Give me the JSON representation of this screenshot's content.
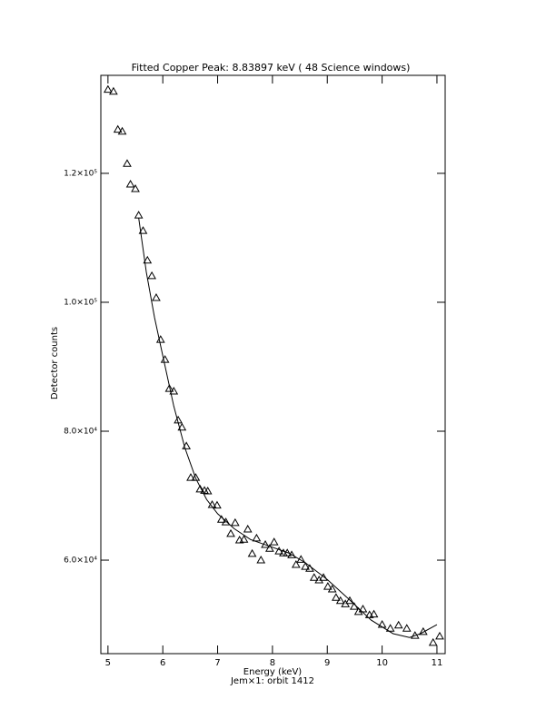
{
  "chart_data": {
    "type": "scatter",
    "title": "Fitted Copper Peak:      8.83897 keV (      48 Science windows)",
    "xlabel": "Energy (keV)",
    "caption": "Jem×1: orbit 1412",
    "ylabel": "Detector counts",
    "xlim": [
      4.87,
      11.15
    ],
    "ylim": [
      45500,
      135200
    ],
    "xticks": [
      5,
      6,
      7,
      8,
      9,
      10,
      11
    ],
    "yticks": [
      {
        "value": 60000,
        "label": "6.0×10⁴"
      },
      {
        "value": 80000,
        "label": "8.0×10⁴"
      },
      {
        "value": 100000,
        "label": "1.0×10⁵"
      },
      {
        "value": 120000,
        "label": "1.2×10⁵"
      }
    ],
    "color": "#000000",
    "series": [
      {
        "marker": "triangle",
        "x": [
          5.0,
          5.1,
          5.18,
          5.26,
          5.35,
          5.41,
          5.5,
          5.56,
          5.64,
          5.72,
          5.8,
          5.88,
          5.96,
          6.04,
          6.12,
          6.2,
          6.28,
          6.35,
          6.43,
          6.51,
          6.6,
          6.68,
          6.76,
          6.82,
          6.9,
          6.99,
          7.07,
          7.15,
          7.24,
          7.32,
          7.4,
          7.48,
          7.55,
          7.63,
          7.71,
          7.79,
          7.87,
          7.95,
          8.03,
          8.12,
          8.2,
          8.27,
          8.35,
          8.43,
          8.52,
          8.6,
          8.68,
          8.76,
          8.85,
          8.93,
          9.01,
          9.09,
          9.16,
          9.24,
          9.33,
          9.41,
          9.49,
          9.57,
          9.65,
          9.77,
          9.85,
          10.0,
          10.15,
          10.3,
          10.45,
          10.6,
          10.75,
          10.93,
          11.05
        ],
        "values": [
          133000,
          132700,
          126800,
          126500,
          121500,
          118300,
          117600,
          113500,
          111100,
          106500,
          104100,
          100700,
          94200,
          91100,
          86600,
          86200,
          81700,
          80600,
          77700,
          72800,
          72800,
          71000,
          70800,
          70700,
          68600,
          68500,
          66300,
          65900,
          64100,
          65800,
          63100,
          63200,
          64800,
          61000,
          63400,
          60000,
          62400,
          61800,
          62800,
          61400,
          61100,
          61100,
          60800,
          59300,
          60100,
          59000,
          58700,
          57300,
          56900,
          57300,
          55900,
          55500,
          54200,
          53700,
          53200,
          53700,
          52800,
          52000,
          52400,
          51500,
          51600,
          50000,
          49400,
          49900,
          49400,
          48300,
          48900,
          47200,
          48200
        ]
      },
      {
        "marker": "line",
        "x": [
          5.56,
          5.7,
          5.85,
          6.0,
          6.2,
          6.4,
          6.6,
          6.8,
          7.0,
          7.3,
          7.6,
          8.0,
          8.3,
          8.6,
          9.0,
          9.4,
          9.8,
          10.2,
          10.5,
          10.7,
          11.0
        ],
        "values": [
          113100,
          104650,
          97600,
          91700,
          83900,
          77500,
          72700,
          69400,
          67200,
          64900,
          63200,
          62000,
          61100,
          59600,
          57000,
          53900,
          50700,
          48600,
          48000,
          48600,
          50000
        ]
      }
    ]
  }
}
